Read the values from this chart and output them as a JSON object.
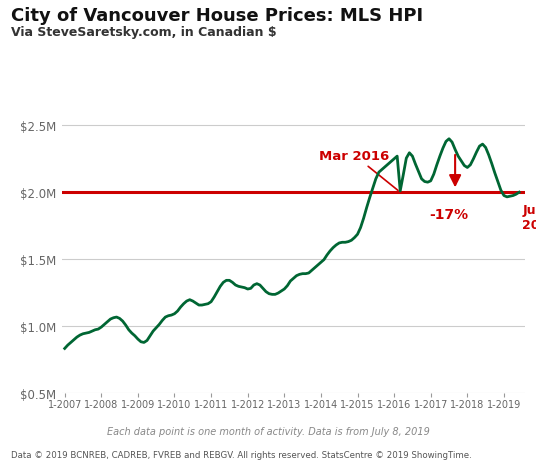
{
  "title": "City of Vancouver House Prices: MLS HPI",
  "subtitle": "Via SteveSaretsky.com, in Canadian $",
  "footer1": "Each data point is one month of activity. Data is from July 8, 2019",
  "footer2": "Data © 2019 BCNREB, CADREB, FVREB and REBGV. All rights reserved. StatsCentre © 2019 ShowingTime.",
  "line_color": "#006633",
  "ref_line_color": "#cc0000",
  "ref_line_value": 2000000,
  "background_color": "#ffffff",
  "ylim": [
    500000,
    2750000
  ],
  "yticks": [
    500000,
    1000000,
    1500000,
    2000000,
    2500000
  ],
  "ytick_labels": [
    "$0.5M",
    "$1.0M",
    "$1.5M",
    "$2.0M",
    "$2.5M"
  ],
  "values": [
    830000,
    855000,
    875000,
    895000,
    915000,
    930000,
    940000,
    945000,
    950000,
    960000,
    970000,
    975000,
    990000,
    1010000,
    1030000,
    1050000,
    1060000,
    1065000,
    1055000,
    1035000,
    1005000,
    970000,
    945000,
    925000,
    900000,
    880000,
    875000,
    890000,
    925000,
    960000,
    985000,
    1010000,
    1040000,
    1065000,
    1075000,
    1080000,
    1090000,
    1110000,
    1140000,
    1165000,
    1185000,
    1195000,
    1185000,
    1170000,
    1155000,
    1155000,
    1160000,
    1165000,
    1180000,
    1215000,
    1255000,
    1295000,
    1325000,
    1340000,
    1340000,
    1325000,
    1305000,
    1295000,
    1290000,
    1285000,
    1275000,
    1280000,
    1305000,
    1315000,
    1305000,
    1280000,
    1255000,
    1240000,
    1235000,
    1235000,
    1245000,
    1260000,
    1275000,
    1300000,
    1335000,
    1355000,
    1375000,
    1385000,
    1390000,
    1390000,
    1395000,
    1415000,
    1435000,
    1455000,
    1475000,
    1495000,
    1530000,
    1560000,
    1585000,
    1605000,
    1620000,
    1625000,
    1625000,
    1630000,
    1640000,
    1660000,
    1685000,
    1735000,
    1805000,
    1885000,
    1960000,
    2030000,
    2100000,
    2150000,
    2170000,
    2190000,
    2210000,
    2230000,
    2250000,
    2270000,
    2010000,
    2130000,
    2255000,
    2295000,
    2270000,
    2210000,
    2155000,
    2100000,
    2080000,
    2075000,
    2085000,
    2135000,
    2205000,
    2270000,
    2330000,
    2380000,
    2400000,
    2375000,
    2320000,
    2270000,
    2235000,
    2200000,
    2185000,
    2205000,
    2250000,
    2300000,
    2345000,
    2360000,
    2335000,
    2280000,
    2215000,
    2145000,
    2080000,
    2015000,
    1975000,
    1965000,
    1970000,
    1975000,
    1985000,
    2000000
  ]
}
